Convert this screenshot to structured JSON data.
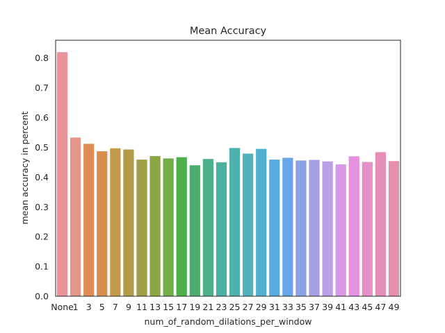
{
  "chart_data": {
    "type": "bar",
    "title": "Mean Accuracy",
    "xlabel": "num_of_random_dilations_per_window",
    "ylabel": "mean accuracy in percent",
    "ylim": [
      0,
      0.86
    ],
    "yticks": [
      0.0,
      0.1,
      0.2,
      0.3,
      0.4,
      0.5,
      0.6,
      0.7,
      0.8
    ],
    "ytick_labels": [
      "0.0",
      "0.1",
      "0.2",
      "0.3",
      "0.4",
      "0.5",
      "0.6",
      "0.7",
      "0.8"
    ],
    "grid": false,
    "legend": "none",
    "categories": [
      "None",
      "1",
      "3",
      "5",
      "7",
      "9",
      "11",
      "13",
      "15",
      "17",
      "19",
      "21",
      "23",
      "25",
      "27",
      "29",
      "31",
      "33",
      "35",
      "37",
      "39",
      "41",
      "43",
      "45",
      "47",
      "49"
    ],
    "values": [
      0.82,
      0.533,
      0.512,
      0.487,
      0.497,
      0.493,
      0.459,
      0.471,
      0.463,
      0.467,
      0.44,
      0.461,
      0.45,
      0.498,
      0.479,
      0.495,
      0.459,
      0.465,
      0.456,
      0.458,
      0.453,
      0.443,
      0.47,
      0.451,
      0.484,
      0.454
    ],
    "colors": [
      "#e8949a",
      "#e5968a",
      "#dd8c56",
      "#d58e4c",
      "#c4994a",
      "#b39b49",
      "#9f9f47",
      "#8ba745",
      "#71af46",
      "#4daf4a",
      "#4aaf6e",
      "#4cb08a",
      "#4db09e",
      "#4eb1ad",
      "#50b1bc",
      "#52b0cf",
      "#55acdf",
      "#67a5e7",
      "#8aa1e8",
      "#a4a0e8",
      "#b99ee8",
      "#d898e8",
      "#e691e0",
      "#e690ca",
      "#e68eb8",
      "#e690ad"
    ]
  }
}
